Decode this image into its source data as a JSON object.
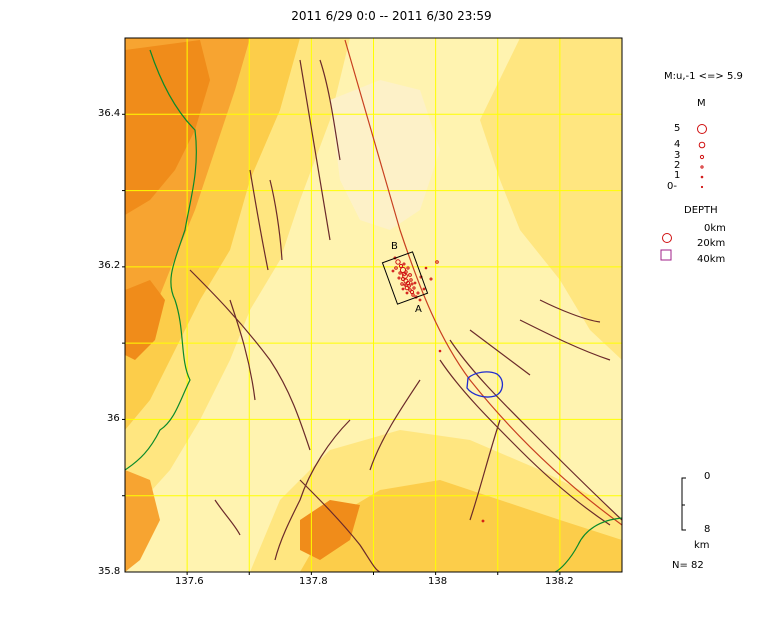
{
  "title": "2011 6/29 0:0 -- 2011 6/30 23:59",
  "map": {
    "lon_range": [
      137.5,
      138.3
    ],
    "lat_range": [
      35.8,
      36.5
    ],
    "lon_ticks": [
      "137.6",
      "137.8",
      "138",
      "138.2"
    ],
    "lat_ticks": [
      "36.4",
      "36.2",
      "36",
      "35.8"
    ],
    "section_labels": {
      "a": "A",
      "b": "B"
    },
    "colors": {
      "low": "#fff3b0",
      "mid": "#ffe680",
      "high": "#fccd4a",
      "higher": "#f7a431",
      "peak": "#f08c1a",
      "grid": "#ffff00",
      "fault": "#6b2a2a",
      "active_fault": "#c84020",
      "border": "#0b8a2b",
      "lake": "#1f2bd0",
      "quake": "#d01010"
    }
  },
  "legend": {
    "magnitude_range": "M:u,-1 <=> 5.9",
    "magnitude_heading": "M",
    "magnitude_levels": [
      "5",
      "4",
      "3",
      "2",
      "1",
      "0-"
    ],
    "depth_heading": "DEPTH",
    "depth_levels": [
      "0km",
      "20km",
      "40km"
    ],
    "scale_top": "0",
    "scale_bottom": "8",
    "scale_unit": "km",
    "count": "N= 82"
  }
}
